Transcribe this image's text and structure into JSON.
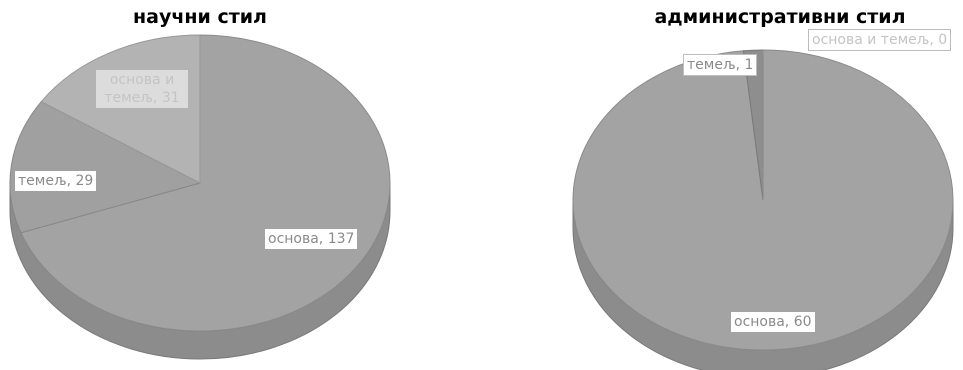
{
  "chart_data": [
    {
      "type": "pie",
      "title": "научни стил",
      "slices": [
        {
          "label": "основа",
          "value": 137,
          "color": "#a3a3a3"
        },
        {
          "label": "темељ",
          "value": 29,
          "color": "#a0a0a0"
        },
        {
          "label": "основа и темељ",
          "value": 31,
          "color": "#b3b3b3"
        }
      ],
      "data_labels": [
        "основа, 137",
        "темељ, 29",
        "основа и темељ, 31"
      ]
    },
    {
      "type": "pie",
      "title": "административни стил",
      "slices": [
        {
          "label": "основа",
          "value": 60,
          "color": "#a3a3a3"
        },
        {
          "label": "темељ",
          "value": 1,
          "color": "#8e8e8e"
        },
        {
          "label": "основа и темељ",
          "value": 0,
          "color": "#b8b8b8"
        }
      ],
      "data_labels": [
        "основа, 60",
        "темељ, 1",
        "основа и темељ, 0"
      ]
    }
  ]
}
